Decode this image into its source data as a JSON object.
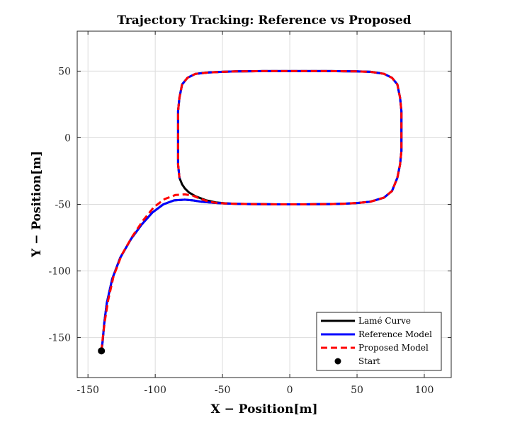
{
  "chart_data": {
    "type": "line",
    "title": "Trajectory Tracking: Reference vs Proposed",
    "xlabel": "X − Position[m]",
    "ylabel": "Y − Position[m]",
    "xlim": [
      -158,
      120
    ],
    "ylim": [
      -180,
      80
    ],
    "xticks": [
      -150,
      -100,
      -50,
      0,
      50,
      100
    ],
    "yticks": [
      -150,
      -100,
      -50,
      0,
      50
    ],
    "xtick_labels": [
      "-150",
      "-100",
      "-50",
      "0",
      "50",
      "100"
    ],
    "ytick_labels": [
      "-150",
      "-100",
      "-50",
      "0",
      "50"
    ],
    "grid": true,
    "legend_position": "bottom-right",
    "series": [
      {
        "name": "Lamé Curve",
        "color": "#000000",
        "style": "solid",
        "x": [
          -140,
          -139,
          -138,
          -136,
          -132,
          -126,
          -118,
          -110,
          -102,
          -94,
          -86,
          -78,
          -72,
          -66,
          -60,
          -54,
          -48,
          -40,
          -30,
          -20,
          -10,
          0,
          10,
          20,
          30,
          40,
          50,
          60,
          70,
          76,
          80,
          82,
          83,
          83,
          83,
          82,
          80,
          76,
          70,
          60,
          50,
          40,
          30,
          20,
          10,
          0,
          -10,
          -20,
          -30,
          -40,
          -50,
          -60,
          -70,
          -76,
          -80,
          -82,
          -83,
          -83,
          -83,
          -82,
          -80,
          -78,
          -75,
          -70,
          -62,
          -55,
          -48,
          -40
        ],
        "y": [
          -160,
          -152,
          -140,
          -124,
          -106,
          -90,
          -76,
          -65,
          -56,
          -50,
          -47,
          -46.5,
          -47,
          -48,
          -48.5,
          -49,
          -49.3,
          -49.6,
          -49.8,
          -49.9,
          -50,
          -50,
          -50,
          -49.9,
          -49.8,
          -49.5,
          -49,
          -48,
          -45,
          -40,
          -30,
          -20,
          -10,
          0,
          20,
          30,
          40,
          45,
          48,
          49.5,
          49.8,
          49.9,
          50,
          50,
          50,
          50,
          50,
          50,
          49.9,
          49.8,
          49.5,
          49,
          48,
          45,
          40,
          30,
          20,
          0,
          -20,
          -30,
          -35,
          -38,
          -41,
          -44,
          -47,
          -48.5,
          -49.2,
          -49.6
        ]
      },
      {
        "name": "Reference Model",
        "color": "#0000ff",
        "style": "solid",
        "x": [
          -140,
          -139,
          -138,
          -136,
          -132,
          -126,
          -118,
          -110,
          -102,
          -94,
          -86,
          -78,
          -72,
          -66,
          -60,
          -54,
          -48,
          -40,
          -30,
          -20,
          -10,
          0,
          10,
          20,
          30,
          40,
          50,
          60,
          70,
          76,
          80,
          82,
          83,
          83,
          83,
          82,
          80,
          76,
          70,
          60,
          50,
          40,
          30,
          20,
          10,
          0,
          -10,
          -20,
          -30,
          -40,
          -50,
          -60,
          -70,
          -76,
          -80,
          -82,
          -83,
          -83,
          -83,
          -82
        ],
        "y": [
          -160,
          -152,
          -140,
          -124,
          -106,
          -90,
          -76,
          -65,
          -56,
          -50,
          -47,
          -46.5,
          -47,
          -48,
          -48.5,
          -49,
          -49.3,
          -49.6,
          -49.8,
          -49.9,
          -50,
          -50,
          -50,
          -49.9,
          -49.8,
          -49.5,
          -49,
          -48,
          -45,
          -40,
          -30,
          -20,
          -10,
          0,
          20,
          30,
          40,
          45,
          48,
          49.5,
          49.8,
          49.9,
          50,
          50,
          50,
          50,
          50,
          50,
          49.9,
          49.8,
          49.5,
          49,
          48,
          45,
          40,
          30,
          20,
          0,
          -20,
          -30
        ]
      },
      {
        "name": "Proposed Model",
        "color": "#ff0000",
        "style": "dashed",
        "x": [
          -140,
          -139,
          -137.5,
          -135,
          -131,
          -125,
          -117,
          -109,
          -101,
          -93,
          -85,
          -78,
          -72,
          -66,
          -60,
          -54,
          -48,
          -40,
          -30,
          -20,
          -10,
          0,
          10,
          20,
          30,
          40,
          50,
          60,
          70,
          76,
          80,
          82,
          83,
          83,
          83,
          82,
          80,
          76,
          70,
          60,
          50,
          40,
          30,
          20,
          10,
          0,
          -10,
          -20,
          -30,
          -40,
          -50,
          -60,
          -70,
          -76,
          -80,
          -82,
          -83,
          -83,
          -83,
          -82
        ],
        "y": [
          -160,
          -150,
          -138,
          -122,
          -104,
          -88,
          -74,
          -62,
          -52,
          -46,
          -43,
          -42.5,
          -43.5,
          -46,
          -48,
          -49,
          -49.3,
          -49.6,
          -49.8,
          -49.9,
          -50,
          -50,
          -50,
          -49.9,
          -49.8,
          -49.5,
          -49,
          -48,
          -45,
          -40,
          -30,
          -20,
          -10,
          0,
          20,
          30,
          40,
          45,
          48,
          49.5,
          49.8,
          49.9,
          50,
          50,
          50,
          50,
          50,
          50,
          49.9,
          49.8,
          49.5,
          49,
          48,
          45,
          40,
          30,
          20,
          0,
          -20,
          -30
        ]
      }
    ],
    "markers": [
      {
        "name": "Start",
        "x": -140,
        "y": -160,
        "color": "#000000"
      }
    ]
  }
}
